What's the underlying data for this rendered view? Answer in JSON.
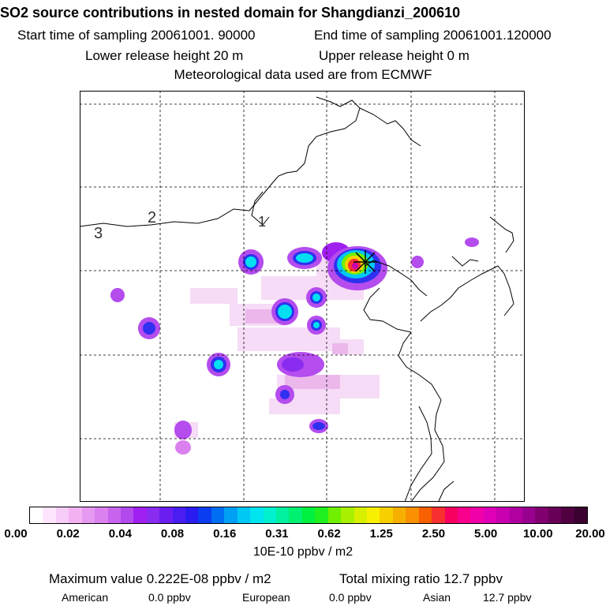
{
  "title": "SO2 source contributions in nested domain for Shangdianzi_200610",
  "sampling": {
    "start_label": "Start time of sampling 20061001. 90000",
    "end_label": "End time of sampling 20061001.120000"
  },
  "release": {
    "lower_label": "Lower release height   20 m",
    "upper_label": "Upper release height    0 m"
  },
  "met_source": "Meteorological data used are from ECMWF",
  "map": {
    "region_labels": [
      "1",
      "2",
      "3"
    ],
    "receptor_icon": "star-cross-icon"
  },
  "colorbar": {
    "tick_labels": [
      "0.00",
      "0.02",
      "0.04",
      "0.08",
      "0.16",
      "0.31",
      "0.62",
      "1.25",
      "2.50",
      "5.00",
      "10.00",
      "20.00"
    ],
    "colors": [
      "#ffffff",
      "#fde6fd",
      "#f8ccf8",
      "#f2b2f2",
      "#e699f0",
      "#da80ef",
      "#c763ee",
      "#b24aee",
      "#a020f0",
      "#8a2bf0",
      "#6a1ff0",
      "#4a1ef0",
      "#2a1cf0",
      "#0a3cf0",
      "#006ef2",
      "#00a0f5",
      "#00c8f5",
      "#00e5f0",
      "#00f0d0",
      "#00f0a0",
      "#00f070",
      "#00f040",
      "#20f020",
      "#70f000",
      "#a8f000",
      "#d8f000",
      "#f8f000",
      "#f8d000",
      "#f8b000",
      "#f89000",
      "#f86000",
      "#f83030",
      "#f80060",
      "#f8008c",
      "#f000a8",
      "#e000b8",
      "#c800b0",
      "#b000a0",
      "#980090",
      "#800070",
      "#680058",
      "#500040",
      "#3a0030"
    ],
    "units": "10E-10 ppbv / m2"
  },
  "summary": {
    "max_label": "Maximum value  0.222E-08 ppbv / m2",
    "total_label": "Total mixing ratio      12.7 ppbv"
  },
  "regions": [
    {
      "name": "American",
      "value": "0.0 ppbv"
    },
    {
      "name": "European",
      "value": "0.0 ppbv"
    },
    {
      "name": "Asian",
      "value": "12.7 ppbv"
    }
  ]
}
